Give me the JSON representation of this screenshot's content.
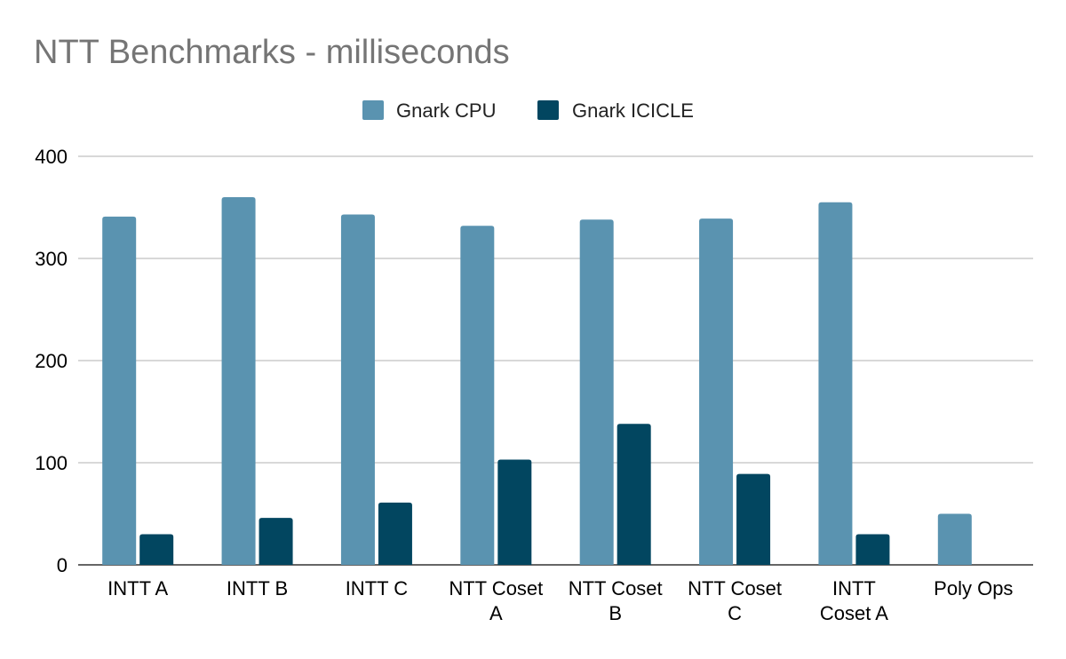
{
  "chart_data": {
    "type": "bar",
    "title": "NTT Benchmarks - milliseconds",
    "xlabel": "",
    "ylabel": "",
    "categories": [
      [
        "INTT A"
      ],
      [
        "INTT B"
      ],
      [
        "INTT C"
      ],
      [
        "NTT Coset",
        "A"
      ],
      [
        "NTT Coset",
        "B"
      ],
      [
        "NTT Coset",
        "C"
      ],
      [
        "INTT",
        "Coset A"
      ],
      [
        "Poly Ops"
      ]
    ],
    "series": [
      {
        "name": "Gnark CPU",
        "color": "#5a93b0",
        "values": [
          341,
          360,
          343,
          332,
          338,
          339,
          355,
          50
        ]
      },
      {
        "name": "Gnark ICICLE",
        "color": "#024660",
        "values": [
          30,
          46,
          61,
          103,
          138,
          89,
          30,
          null
        ]
      }
    ],
    "ylim": [
      0,
      400
    ],
    "yticks": [
      0,
      100,
      200,
      300,
      400
    ],
    "grid": true,
    "legend_position": "top-center"
  }
}
